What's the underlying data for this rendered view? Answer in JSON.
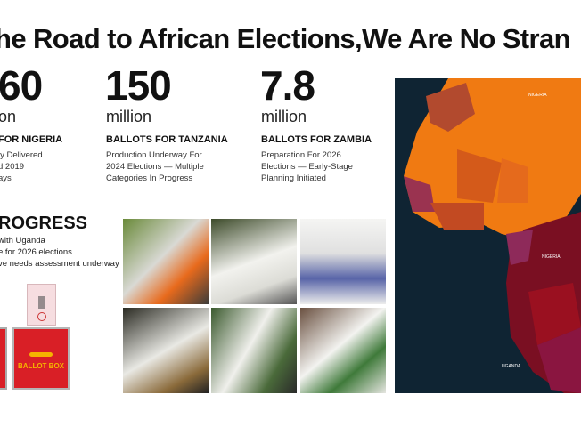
{
  "title": "he Road to African Elections,We Are No Stran",
  "stats": [
    {
      "number": "60",
      "unit": "on",
      "heading": "FOR NIGERIA",
      "desc": [
        "ly Delivered",
        "d 2019",
        "ays"
      ]
    },
    {
      "number": "150",
      "unit": "million",
      "heading": "BALLOTS FOR TANZANIA",
      "desc": [
        "Production Underway For",
        "2024 Elections — Multiple",
        "Categories In Progress"
      ]
    },
    {
      "number": "7.8",
      "unit": "million",
      "heading": "BALLOTS FOR ZAMBIA",
      "desc": [
        "Preparation For 2026",
        "Elections — Early-Stage",
        "Planning Initiated"
      ]
    }
  ],
  "progress": {
    "heading": "ROGRESS",
    "lines": [
      "with Uganda",
      "e for 2026 elections",
      "ve needs assessment underway"
    ]
  },
  "ballot_box": {
    "label": "BALLOT BOX",
    "color": "#d91f26",
    "label_color": "#f5b400"
  },
  "map": {
    "labels": [
      "NIGERIA",
      "NIGERIA",
      "UGANDA"
    ],
    "ocean_color": "#0f2433"
  }
}
